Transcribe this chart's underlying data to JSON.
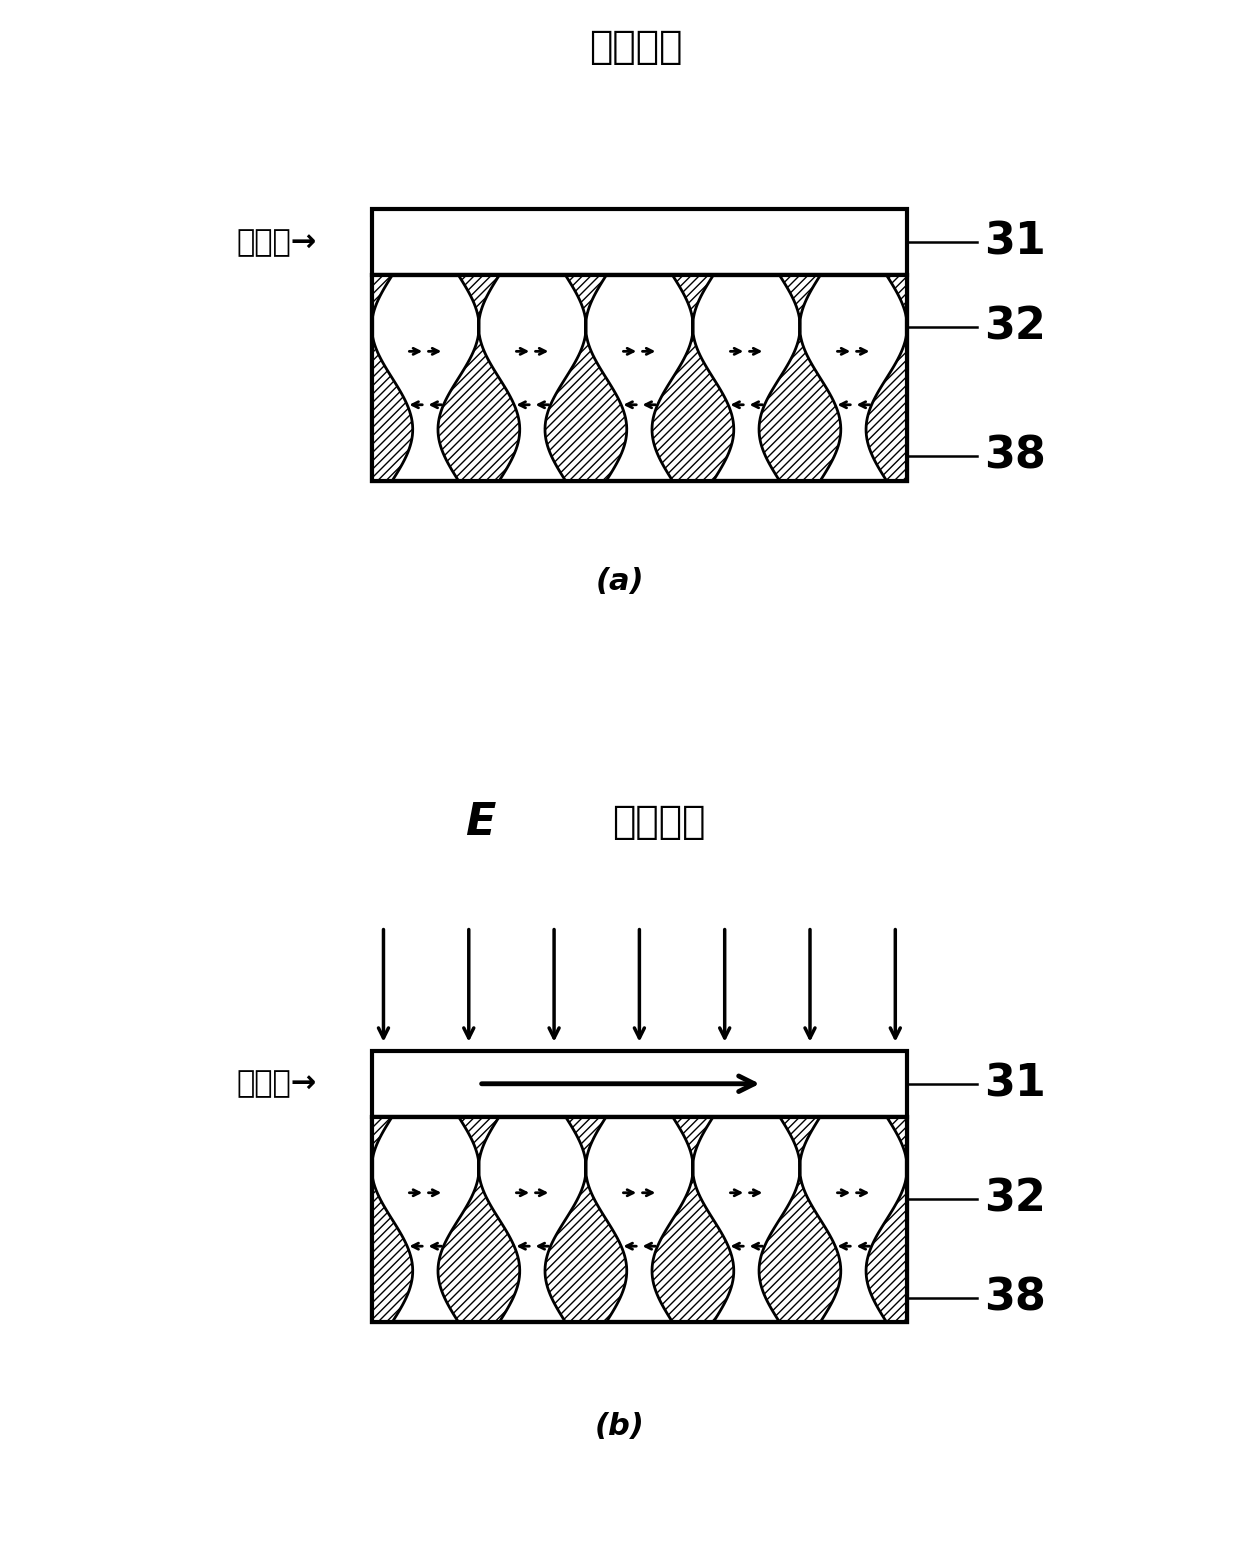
{
  "title_a": "加电场前",
  "title_b_E": "E",
  "title_b_rest": "加电场时",
  "label_a": "(a)",
  "label_b": "(b)",
  "label_31": "31",
  "label_32": "32",
  "label_38": "38",
  "label_para": "顺磁态→",
  "label_ferro": "铁磁态→",
  "bg_color": "#ffffff",
  "title_fontsize": 28,
  "label_fontsize": 32,
  "sub_fontsize": 22,
  "chinese_fontsize": 22,
  "anno_fontsize": 22
}
